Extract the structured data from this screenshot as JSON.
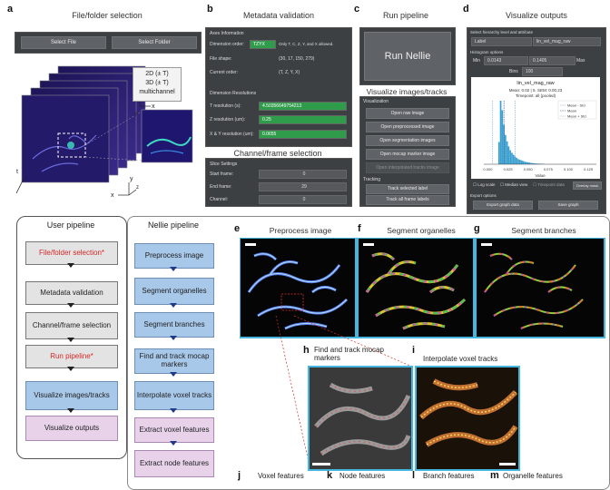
{
  "panel_a": {
    "letter": "a",
    "title": "File/folder selection",
    "buttons": [
      "Select File",
      "Select Folder"
    ],
    "dims_lines": [
      "2D (± T)",
      "3D (± T)",
      "multichannel"
    ],
    "axis": {
      "t": "t",
      "x": "x",
      "y": "y",
      "z": "z"
    }
  },
  "panel_b": {
    "letter": "b",
    "title": "Metadata validation",
    "axes_info": "Axes Information",
    "dim_order_label": "Dimension order:",
    "dim_order_value": "TZYX",
    "dim_order_hint": "Only T, C, Z, Y, and X allowed.",
    "file_shape_label": "File shape:",
    "file_shape_value": "(30, 17, 150, 279)",
    "current_order_label": "Current order:",
    "current_order_value": "(T, Z, Y, X)",
    "dim_res": "Dimension Resolutions",
    "t_res_label": "T resolution (s):",
    "t_res_value": "4.50356649754213",
    "z_res_label": "Z resolution (um):",
    "z_res_value": "0.25",
    "xy_res_label": "X & Y resolution (um):",
    "xy_res_value": "0.0655",
    "channel_title": "Channel/frame selection",
    "slice_settings": "Slice Settings",
    "start_label": "Start frame:",
    "start_value": "0",
    "end_label": "End frame:",
    "end_value": "29",
    "channel_label": "Channel:",
    "channel_value": "0"
  },
  "panel_c": {
    "letter": "c",
    "title": "Run pipeline",
    "run_button": "Run Nellie",
    "viz_title": "Visualize images/tracks",
    "viz_header": "Visualization",
    "viz_buttons": [
      "Open raw image",
      "Open preprocessed image",
      "Open segmentation images",
      "Open mocap marker image",
      "Open interpolated tracks image"
    ],
    "tracking_header": "Tracking",
    "track_buttons": [
      "Track selected label",
      "Track all frame labels"
    ]
  },
  "panel_d": {
    "letter": "d",
    "title": "Visualize outputs",
    "select_label": "Select hierarchy level and attribute",
    "level_value": "Label",
    "attr_value": "lin_vel_mag_raw",
    "hist_options": "Histogram options",
    "min_label": "Min",
    "min_value": "0.0143",
    "max_label": "Max",
    "max_value": "0.1405",
    "bins_label": "Bins",
    "bins_value": "100",
    "plot_title": "lin_vel_mag_raw",
    "stats_line1": "Mean: 0.02 | 5. SEM: 0.00,23",
    "stats_line2": "Timepoint: all (pooled)",
    "xlabel": "Value",
    "legend": [
      "Mean - Std",
      "Mean",
      "Mean + Std"
    ],
    "checks": [
      "Log scale",
      "Median view",
      "Timepoint data",
      "Overlay mask"
    ],
    "export_label": "Export options",
    "export_buttons": [
      "Export graph data",
      "Save graph"
    ]
  },
  "chart_data": {
    "type": "bar",
    "title": "lin_vel_mag_raw",
    "xlabel": "Value",
    "ylabel": "",
    "xticks": [
      "0.000",
      "0.025",
      "0.050",
      "0.075",
      "0.100",
      "0.125"
    ],
    "xlim": [
      -0.005,
      0.135
    ],
    "bins_x": [
      0.014,
      0.016,
      0.018,
      0.02,
      0.022,
      0.024,
      0.026,
      0.028,
      0.03,
      0.032,
      0.034,
      0.036,
      0.038,
      0.04,
      0.042,
      0.044,
      0.046,
      0.048,
      0.05,
      0.052,
      0.054,
      0.056,
      0.058,
      0.06,
      0.062,
      0.064,
      0.066,
      0.068,
      0.07
    ],
    "values": [
      0.35,
      1.0,
      0.85,
      0.62,
      0.46,
      0.36,
      0.28,
      0.22,
      0.18,
      0.15,
      0.12,
      0.1,
      0.08,
      0.07,
      0.06,
      0.05,
      0.04,
      0.035,
      0.03,
      0.025,
      0.02,
      0.018,
      0.015,
      0.012,
      0.01,
      0.009,
      0.008,
      0.006,
      0.005
    ],
    "mean": 0.02,
    "std_lines": [
      0.006,
      0.034
    ],
    "legend_position": "top-right",
    "colors": {
      "bars": "#3aa0d0",
      "mean": "#1f4e8c",
      "std": "#7a9fc4"
    }
  },
  "flow": {
    "user_title": "User pipeline",
    "nellie_title": "Nellie pipeline",
    "user_steps": [
      {
        "label": "File/folder selection*",
        "style": "gray",
        "red": true
      },
      {
        "label": "Metadata validation",
        "style": "gray",
        "red": false
      },
      {
        "label": "Channel/frame selection",
        "style": "gray",
        "red": false
      },
      {
        "label": "Run pipeline*",
        "style": "gray",
        "red": true
      },
      {
        "label": "Visualize images/tracks",
        "style": "blue",
        "red": false
      },
      {
        "label": "Visualize outputs",
        "style": "pink",
        "red": false
      }
    ],
    "nellie_steps": [
      {
        "label": "Preprocess image",
        "style": "blue"
      },
      {
        "label": "Segment organelles",
        "style": "blue"
      },
      {
        "label": "Segment branches",
        "style": "blue"
      },
      {
        "label": "Find and track mocap markers",
        "style": "blue"
      },
      {
        "label": "Interpolate voxel tracks",
        "style": "blue"
      },
      {
        "label": "Extract voxel features",
        "style": "pink"
      },
      {
        "label": "Extract node features",
        "style": "pink"
      }
    ]
  },
  "images": {
    "e": {
      "letter": "e",
      "title": "Preprocess image"
    },
    "f": {
      "letter": "f",
      "title": "Segment organelles"
    },
    "g": {
      "letter": "g",
      "title": "Segment branches"
    },
    "h": {
      "letter": "h",
      "title": "Find and track mocap markers"
    },
    "i": {
      "letter": "i",
      "title": "Interpolate voxel tracks"
    }
  },
  "bottom": [
    {
      "letter": "j",
      "title": "Voxel features"
    },
    {
      "letter": "k",
      "title": "Node features"
    },
    {
      "letter": "l",
      "title": "Branch features"
    },
    {
      "letter": "m",
      "title": "Organelle features"
    }
  ],
  "colors": {
    "red_text": "#d62828",
    "cyan_frame": "#45b6e0",
    "gui_dark": "#3c4043"
  }
}
